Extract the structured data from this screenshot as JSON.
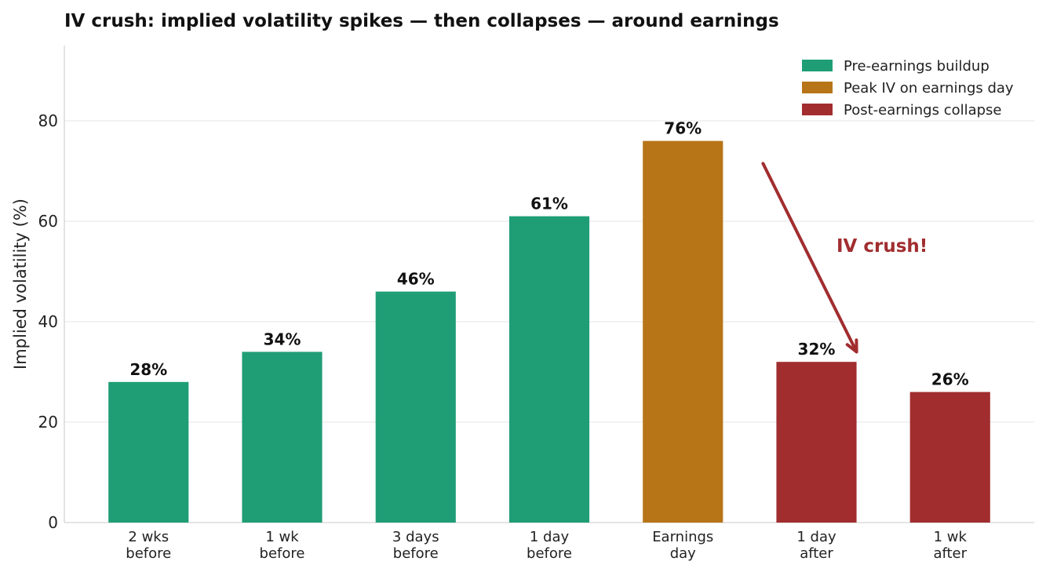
{
  "chart_data": {
    "type": "bar",
    "title": "IV crush: implied volatility spikes — then collapses — around earnings",
    "ylabel": "Implied volatility (%)",
    "xlabel": "",
    "ylim": [
      0,
      95
    ],
    "yticks": [
      0,
      20,
      40,
      60,
      80
    ],
    "grid": "horizontal",
    "legend_position": "top-right",
    "categories": [
      [
        "2 wks",
        "before"
      ],
      [
        "1 wk",
        "before"
      ],
      [
        "3 days",
        "before"
      ],
      [
        "1 day",
        "before"
      ],
      [
        "Earnings",
        "day"
      ],
      [
        "1 day",
        "after"
      ],
      [
        "1 wk",
        "after"
      ]
    ],
    "values": [
      28,
      34,
      46,
      61,
      76,
      32,
      26
    ],
    "value_labels": [
      "28%",
      "34%",
      "46%",
      "61%",
      "76%",
      "32%",
      "26%"
    ],
    "bar_groups": [
      0,
      0,
      0,
      0,
      1,
      2,
      2
    ],
    "legend": [
      {
        "label": "Pre-earnings buildup",
        "color": "#1f9e76"
      },
      {
        "label": "Peak IV on earnings day",
        "color": "#b87518"
      },
      {
        "label": "Post-earnings collapse",
        "color": "#a12d2f"
      }
    ],
    "annotation": {
      "text": "IV crush!",
      "color": "#a12d2f",
      "arrow_from": {
        "x": 4.6,
        "y": 71.5
      },
      "arrow_to": {
        "x": 5.3,
        "y": 34
      }
    }
  }
}
